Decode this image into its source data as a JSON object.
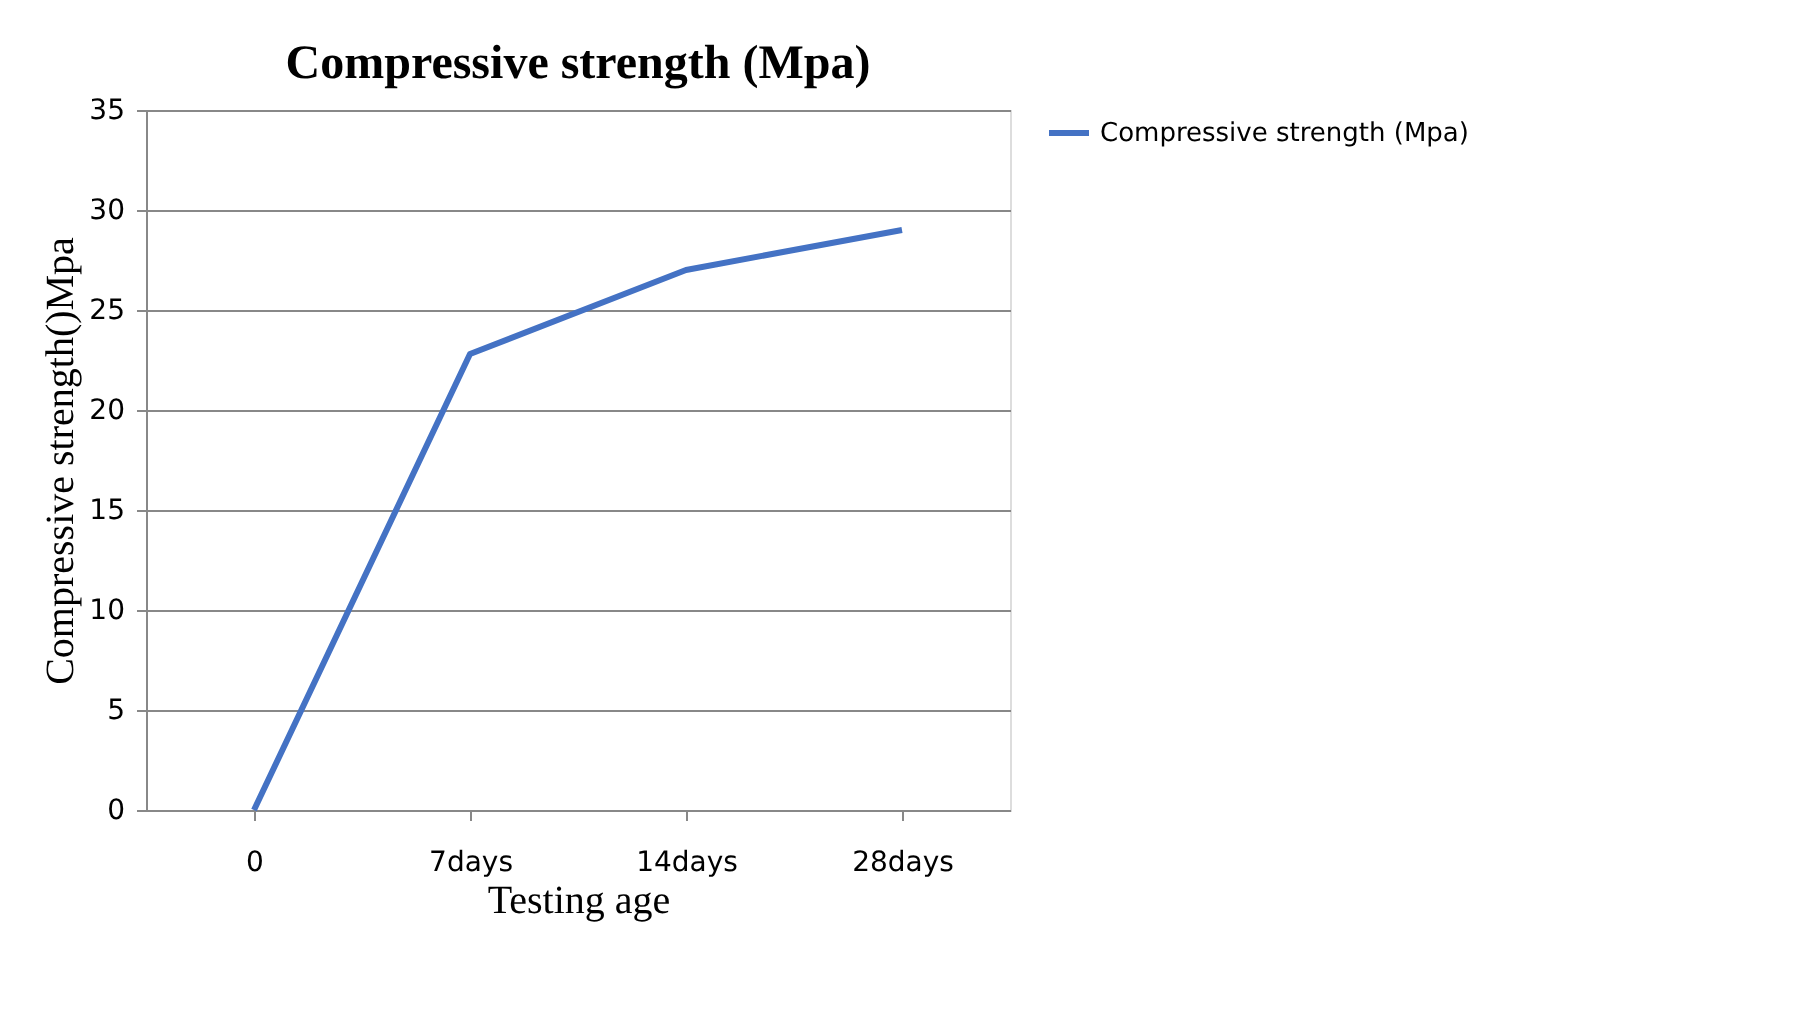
{
  "chart_data": {
    "type": "line",
    "title": "Compressive strength (Mpa)",
    "xlabel": "Testing age",
    "ylabel": "Compressive strength()Mpa",
    "categories": [
      "0",
      "7days",
      "14days",
      "28days"
    ],
    "series": [
      {
        "name": "Compressive strength (Mpa)",
        "color": "#4472c4",
        "values": [
          0,
          22.8,
          27,
          29
        ]
      }
    ],
    "ylim": [
      0,
      35
    ],
    "yticks": [
      0,
      5,
      10,
      15,
      20,
      25,
      30,
      35
    ],
    "grid": "y",
    "legend": "right",
    "marker": "none",
    "line_style": "solid"
  }
}
